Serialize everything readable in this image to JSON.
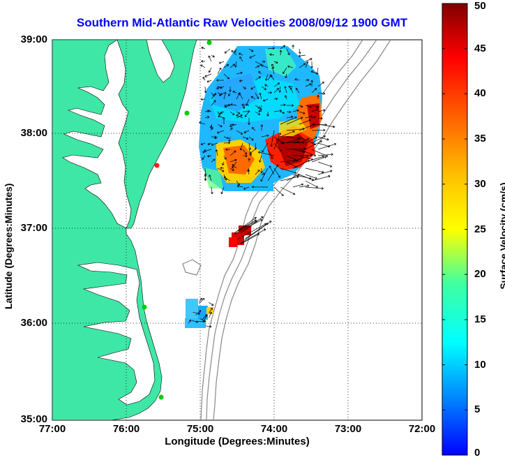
{
  "title": "Southern Mid-Atlantic Raw Velocities 2008/09/12 1900 GMT",
  "xlabel": "Longitude (Degrees:Minutes)",
  "ylabel": "Latitude (Degrees:Minutes)",
  "colorbar_label": "Surface Velocity (cm/s)",
  "x_ticks": [
    "77:00",
    "76:00",
    "75:00",
    "74:00",
    "73:00",
    "72:00"
  ],
  "y_ticks": [
    "39:00",
    "38:00",
    "37:00",
    "36:00",
    "35:00"
  ],
  "cb_ticks": [
    "50",
    "45",
    "40",
    "35",
    "30",
    "25",
    "20",
    "15",
    "10",
    "5",
    "0"
  ],
  "colors": {
    "land": "#3fe7a6",
    "ocean": "#ffffff",
    "title": "#0000ff",
    "isobath": "#888888",
    "grid": "#000000"
  },
  "colormap": "jet",
  "colorbar_range": [
    0,
    50
  ]
}
